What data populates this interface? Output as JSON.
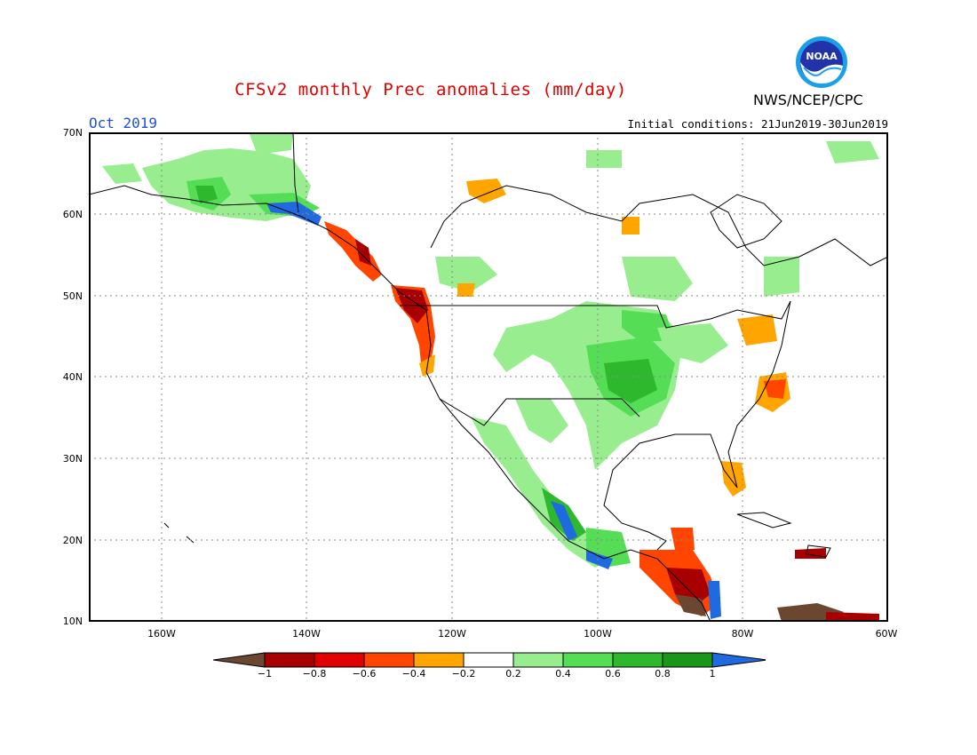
{
  "title": "CFSv2 monthly Prec anomalies (mm/day)",
  "period": "Oct 2019",
  "initial_conditions": "Initial conditions: 21Jun2019-30Jun2019",
  "agency": "NWS/NCEP/CPC",
  "logo_text": "NOAA",
  "map": {
    "lat_labels": [
      "70N",
      "60N",
      "50N",
      "40N",
      "30N",
      "20N",
      "10N"
    ],
    "lon_labels": [
      "160W",
      "140W",
      "120W",
      "100W",
      "80W",
      "60W"
    ],
    "lat_range": [
      10,
      70
    ],
    "lon_range": [
      -170,
      -60
    ],
    "grid": true
  },
  "colorbar": {
    "labels": [
      "−1",
      "−0.8",
      "−0.6",
      "−0.4",
      "−0.2",
      "0.2",
      "0.4",
      "0.6",
      "0.8",
      "1"
    ],
    "colors": [
      "#6b4732",
      "#a80000",
      "#e00000",
      "#ff4500",
      "#ffa500",
      "#ffffff",
      "#98ee8f",
      "#55dd55",
      "#2eb82e",
      "#1a961a",
      "#1f6ae0"
    ]
  },
  "anomaly_regions": [
    {
      "name": "Pacific Northwest coast",
      "value": -0.8
    },
    {
      "name": "Alaska panhandle coast",
      "value": -0.6
    },
    {
      "name": "Southeast Alaska coast",
      "value": 1.0
    },
    {
      "name": "Central Plains",
      "value": 0.8
    },
    {
      "name": "Mid-Atlantic coast",
      "value": -0.4
    },
    {
      "name": "Florida",
      "value": -0.4
    },
    {
      "name": "Great Lakes east",
      "value": -0.4
    },
    {
      "name": "Western Mexico coast",
      "value": 1.0
    },
    {
      "name": "Southern Mexico",
      "value": 0.6
    },
    {
      "name": "Central America",
      "value": -0.8
    },
    {
      "name": "Northern Canada",
      "value": -0.4
    },
    {
      "name": "Northern South America",
      "value": -1.0
    }
  ]
}
